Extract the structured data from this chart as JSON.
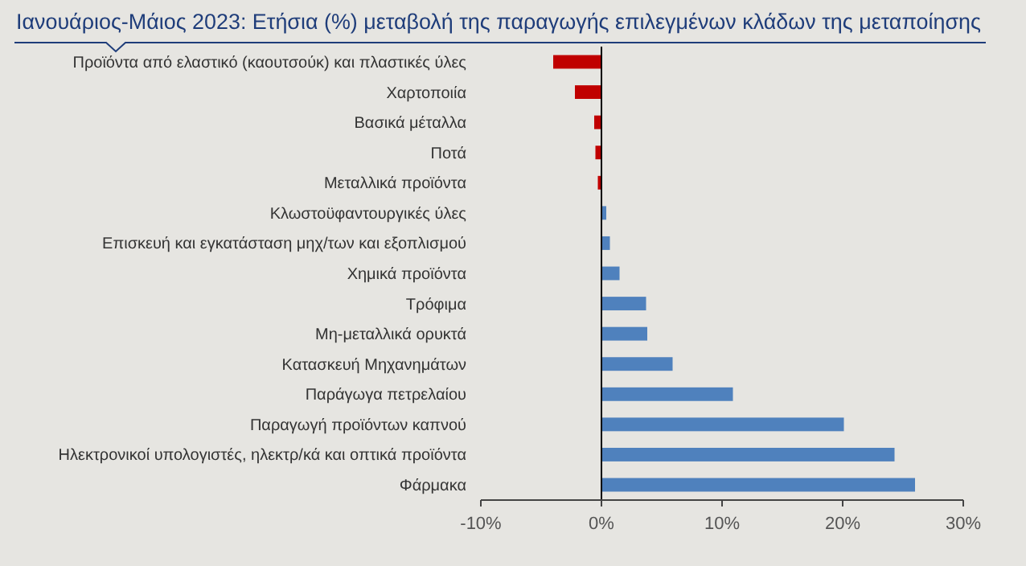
{
  "chart_data": {
    "type": "bar",
    "orientation": "horizontal",
    "title": "Ιανουάριος-Μάιος 2023: Ετήσια (%) μεταβολή της παραγωγής επιλεγμένων κλάδων της μεταποίησης",
    "categories": [
      "Προϊόντα από ελαστικό (καουτσούκ) και πλαστικές ύλες",
      "Χαρτοποιία",
      "Βασικά μέταλλα",
      "Ποτά",
      "Μεταλλικά προϊόντα",
      "Κλωστοϋφαντουργικές ύλες",
      "Επισκευή και εγκατάσταση μηχ/των και εξοπλισμού",
      "Χημικά προϊόντα",
      "Τρόφιμα",
      "Μη-μεταλλικά ορυκτά",
      "Κατασκευή Μηχανημάτων",
      "Παράγωγα πετρελαίου",
      "Παραγωγή προϊόντων καπνού",
      "Ηλεκτρονικοί υπολογιστές, ηλεκτρ/κά και οπτικά προϊόντα",
      "Φάρμακα"
    ],
    "values": [
      -4.0,
      -2.2,
      -0.6,
      -0.5,
      -0.3,
      0.4,
      0.7,
      1.5,
      3.7,
      3.8,
      5.9,
      10.9,
      20.1,
      24.3,
      26.0
    ],
    "colors": [
      "#c00000",
      "#c00000",
      "#c00000",
      "#c00000",
      "#c00000",
      "#4f81bd",
      "#4f81bd",
      "#4f81bd",
      "#4f81bd",
      "#4f81bd",
      "#4f81bd",
      "#4f81bd",
      "#4f81bd",
      "#4f81bd",
      "#4f81bd"
    ],
    "xlim": [
      -10,
      30
    ],
    "xticks": [
      {
        "value": -10,
        "label": "-10%"
      },
      {
        "value": 0,
        "label": "0%"
      },
      {
        "value": 10,
        "label": "10%"
      },
      {
        "value": 20,
        "label": "20%"
      },
      {
        "value": 30,
        "label": "30%"
      }
    ]
  }
}
